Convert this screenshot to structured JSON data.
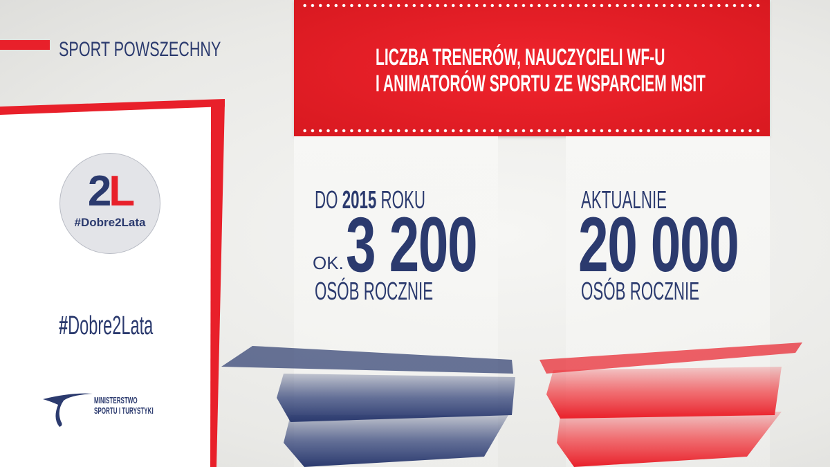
{
  "section": "SPORT POWSZECHNY",
  "header": {
    "line1": "LICZBA TRENERÓW, NAUCZYCIELI WF-U",
    "line2": "I ANIMATORÓW SPORTU ZE WSPARCIEM MSIT"
  },
  "left_stat": {
    "label_pre": "DO ",
    "label_year": "2015",
    "label_post": " ROKU",
    "prefix": "OK.",
    "value": "3 200",
    "unit": "OSÓB ROCZNIE"
  },
  "right_stat": {
    "label": "AKTUALNIE",
    "value": "20 000",
    "unit": "OSÓB ROCZNIE"
  },
  "badge": {
    "mark_2": "2",
    "mark_l": "L",
    "tag": "#Dobre2Lata"
  },
  "hashtag": {
    "hash": "#",
    "text": "Dobre2Lata"
  },
  "ministry": {
    "line1": "MINISTERSTWO",
    "line2": "SPORTU I TURYSTYKI"
  },
  "colors": {
    "red": "#e8202a",
    "navy": "#2b3a6e"
  }
}
